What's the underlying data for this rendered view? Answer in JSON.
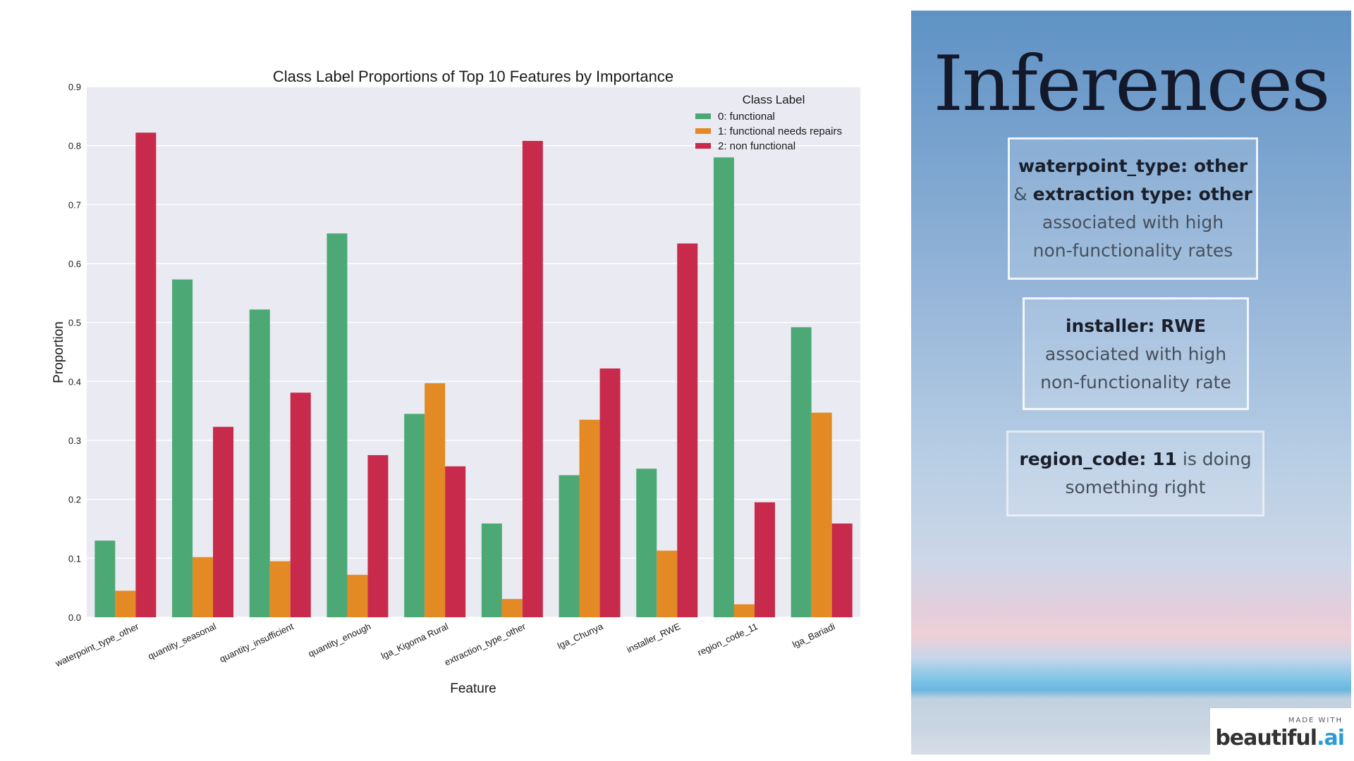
{
  "chart_data": {
    "type": "bar",
    "title": "Class Label Proportions of Top 10 Features by Importance",
    "xlabel": "Feature",
    "ylabel": "Proportion",
    "ylim": [
      0,
      0.9
    ],
    "yticks": [
      "0.0",
      "0.1",
      "0.2",
      "0.3",
      "0.4",
      "0.5",
      "0.6",
      "0.7",
      "0.8",
      "0.9"
    ],
    "grid": true,
    "legend": {
      "title": "Class Label",
      "placement": "top-right"
    },
    "categories": [
      "waterpoint_type_other",
      "quantity_seasonal",
      "quantity_insufficient",
      "quantity_enough",
      "lga_Kigoma Rural",
      "extraction_type_other",
      "lga_Chunya",
      "installer_RWE",
      "region_code_11",
      "lga_Bariadi"
    ],
    "series": [
      {
        "name": "0: functional",
        "color": "#4ca874",
        "values": [
          0.13,
          0.573,
          0.522,
          0.651,
          0.345,
          0.159,
          0.241,
          0.252,
          0.78,
          0.492
        ]
      },
      {
        "name": "1: functional needs repairs",
        "color": "#e38a24",
        "values": [
          0.045,
          0.102,
          0.095,
          0.072,
          0.397,
          0.031,
          0.335,
          0.113,
          0.022,
          0.347
        ]
      },
      {
        "name": "2: non functional",
        "color": "#c82a4b",
        "values": [
          0.822,
          0.323,
          0.381,
          0.275,
          0.256,
          0.808,
          0.422,
          0.634,
          0.195,
          0.159
        ]
      }
    ]
  },
  "panel": {
    "title": "Inferences",
    "card1": {
      "strong1": "waterpoint_type: other",
      "amp": "& ",
      "strong2": "extraction type: other",
      "line3": "associated with high",
      "line4": "non-functionality rates"
    },
    "card2": {
      "strong": "installer: RWE",
      "line2": "associated with high",
      "line3": "non-functionality rate"
    },
    "card3": {
      "strong": "region_code: 11",
      "rest": " is doing",
      "line2": "something right"
    }
  },
  "badge": {
    "small": "MADE WITH",
    "brand": "beautiful",
    "dot": ".",
    "tld": "ai"
  }
}
